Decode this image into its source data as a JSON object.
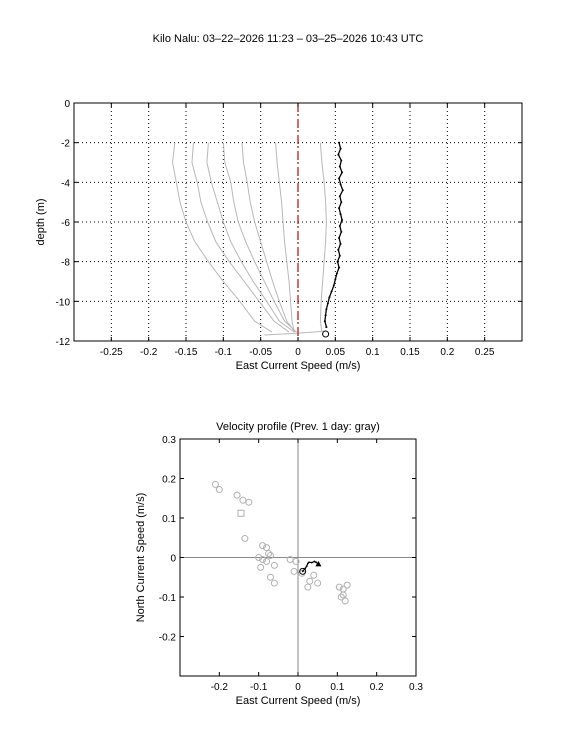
{
  "figure": {
    "title": "Kilo Nalu: 03–22–2026 11:23 – 03–25–2026 10:43 UTC"
  },
  "chart_data": [
    {
      "type": "line",
      "title": "",
      "xlabel": "East Current Speed (m/s)",
      "ylabel": "depth (m)",
      "xlim": [
        -0.3,
        0.3
      ],
      "ylim": [
        -12,
        0
      ],
      "xticks": [
        "-0.25",
        "-0.2",
        "-0.15",
        "-0.1",
        "-0.05",
        "0",
        "0.05",
        "0.1",
        "0.15",
        "0.2",
        "0.25"
      ],
      "yticks": [
        "0",
        "-2",
        "-4",
        "-6",
        "-8",
        "-10",
        "-12"
      ],
      "grid": true,
      "reference_line": {
        "x": 0,
        "color": "#cc0000",
        "style": "dash-dot"
      },
      "colors": {
        "current": "#000000",
        "previous": "#b8b8b8"
      },
      "current_profile": {
        "x": [
          0.055,
          0.057,
          0.054,
          0.058,
          0.056,
          0.059,
          0.055,
          0.057,
          0.06,
          0.056,
          0.058,
          0.055,
          0.057,
          0.059,
          0.056,
          0.058,
          0.055,
          0.057,
          0.054,
          0.056,
          0.053,
          0.055,
          0.052,
          0.05,
          0.048,
          0.045,
          0.042,
          0.04,
          0.038,
          0.037,
          0.036,
          0.038
        ],
        "y": [
          -2.0,
          -2.3,
          -2.6,
          -2.9,
          -3.2,
          -3.5,
          -3.8,
          -4.1,
          -4.4,
          -4.7,
          -5.0,
          -5.3,
          -5.6,
          -5.9,
          -6.2,
          -6.5,
          -6.8,
          -7.1,
          -7.4,
          -7.7,
          -8.0,
          -8.3,
          -8.6,
          -8.9,
          -9.2,
          -9.5,
          -9.8,
          -10.1,
          -10.4,
          -10.7,
          -11.0,
          -11.3
        ]
      },
      "current_bottom_marker": {
        "x": 0.037,
        "y": -11.65
      },
      "previous_profiles": [
        {
          "x": [
            -0.165,
            -0.168,
            -0.163,
            -0.158,
            -0.15,
            -0.138,
            -0.12,
            -0.1,
            -0.078,
            -0.058,
            -0.035
          ],
          "y": [
            -2.0,
            -3.0,
            -4.0,
            -5.0,
            -6.0,
            -7.0,
            -8.0,
            -9.0,
            -10.0,
            -11.0,
            -11.55
          ]
        },
        {
          "x": [
            -0.14,
            -0.142,
            -0.135,
            -0.13,
            -0.121,
            -0.11,
            -0.092,
            -0.072,
            -0.052,
            -0.032,
            -0.012
          ],
          "y": [
            -2.0,
            -3.0,
            -4.0,
            -5.0,
            -6.0,
            -7.0,
            -8.0,
            -9.0,
            -10.0,
            -11.0,
            -11.55
          ]
        },
        {
          "x": [
            -0.12,
            -0.122,
            -0.116,
            -0.108,
            -0.1,
            -0.09,
            -0.076,
            -0.06,
            -0.042,
            -0.025,
            -0.005
          ],
          "y": [
            -2.0,
            -3.0,
            -4.0,
            -5.0,
            -6.0,
            -7.0,
            -8.0,
            -9.0,
            -10.0,
            -11.0,
            -11.55
          ]
        },
        {
          "x": [
            -0.1,
            -0.098,
            -0.09,
            -0.086,
            -0.08,
            -0.07,
            -0.058,
            -0.045,
            -0.032,
            -0.018,
            -0.002
          ],
          "y": [
            -2.0,
            -3.0,
            -4.0,
            -5.0,
            -6.0,
            -7.0,
            -8.0,
            -9.0,
            -10.0,
            -11.0,
            -11.55
          ]
        },
        {
          "x": [
            -0.075,
            -0.073,
            -0.068,
            -0.064,
            -0.058,
            -0.05,
            -0.042,
            -0.034,
            -0.025,
            -0.015,
            -0.004
          ],
          "y": [
            -2.0,
            -3.0,
            -4.0,
            -5.0,
            -6.0,
            -7.0,
            -8.0,
            -9.0,
            -10.0,
            -11.0,
            -11.55
          ]
        },
        {
          "x": [
            -0.03,
            -0.028,
            -0.025,
            -0.022,
            -0.02,
            -0.018,
            -0.015,
            -0.012,
            -0.01,
            -0.008,
            -0.005
          ],
          "y": [
            -2.0,
            -3.0,
            -4.0,
            -5.0,
            -6.0,
            -7.0,
            -8.0,
            -9.0,
            -10.0,
            -11.0,
            -11.55
          ]
        },
        {
          "x": [
            0.03,
            0.032,
            0.035,
            0.037,
            0.038,
            0.037,
            0.035,
            0.033,
            0.031,
            0.03,
            0.032
          ],
          "y": [
            -2.0,
            -3.0,
            -4.0,
            -5.0,
            -6.0,
            -7.0,
            -8.0,
            -9.0,
            -10.0,
            -11.0,
            -11.55
          ]
        },
        {
          "x": [
            -0.045,
            -0.02,
            0.0,
            0.02,
            0.035
          ],
          "y": [
            -11.7,
            -11.65,
            -11.6,
            -11.55,
            -11.5
          ]
        }
      ]
    },
    {
      "type": "scatter",
      "title": "Velocity profile (Prev. 1 day: gray)",
      "xlabel": "East Current Speed (m/s)",
      "ylabel": "North Current Speed (m/s)",
      "xlim": [
        -0.3,
        0.3
      ],
      "ylim": [
        -0.3,
        0.3
      ],
      "xticks": [
        "-0.2",
        "-0.1",
        "0",
        "0.1",
        "0.2",
        "0.3"
      ],
      "yticks": [
        "0.3",
        "0.2",
        "0.1",
        "0",
        "-0.1",
        "-0.2"
      ],
      "grid": false,
      "colors": {
        "current": "#000000",
        "previous": "#b0b0b0",
        "axes_lines": "#888888"
      },
      "previous_points": [
        {
          "x": -0.21,
          "y": 0.185
        },
        {
          "x": -0.2,
          "y": 0.172
        },
        {
          "x": -0.155,
          "y": 0.158
        },
        {
          "x": -0.14,
          "y": 0.145
        },
        {
          "x": -0.125,
          "y": 0.14
        },
        {
          "x": -0.135,
          "y": 0.048
        },
        {
          "x": -0.09,
          "y": 0.03
        },
        {
          "x": -0.08,
          "y": 0.025
        },
        {
          "x": -0.075,
          "y": 0.01
        },
        {
          "x": -0.07,
          "y": 0.005
        },
        {
          "x": -0.1,
          "y": 0.0
        },
        {
          "x": -0.09,
          "y": -0.005
        },
        {
          "x": -0.08,
          "y": -0.01
        },
        {
          "x": -0.095,
          "y": -0.025
        },
        {
          "x": -0.06,
          "y": -0.02
        },
        {
          "x": -0.02,
          "y": -0.005
        },
        {
          "x": -0.005,
          "y": -0.01
        },
        {
          "x": -0.01,
          "y": -0.035
        },
        {
          "x": 0.01,
          "y": -0.04
        },
        {
          "x": 0.04,
          "y": -0.045
        },
        {
          "x": 0.03,
          "y": -0.06
        },
        {
          "x": 0.025,
          "y": -0.075
        },
        {
          "x": 0.05,
          "y": -0.065
        },
        {
          "x": -0.07,
          "y": -0.05
        },
        {
          "x": -0.06,
          "y": -0.065
        },
        {
          "x": 0.105,
          "y": -0.075
        },
        {
          "x": 0.115,
          "y": -0.08
        },
        {
          "x": 0.125,
          "y": -0.07
        },
        {
          "x": 0.11,
          "y": -0.1
        },
        {
          "x": 0.12,
          "y": -0.11
        },
        {
          "x": 0.115,
          "y": -0.095
        }
      ],
      "previous_square": {
        "x": -0.145,
        "y": 0.112
      },
      "current_track": {
        "x": [
          0.012,
          0.018,
          0.022,
          0.025,
          0.028,
          0.035,
          0.042,
          0.046,
          0.05
        ],
        "y": [
          -0.035,
          -0.028,
          -0.022,
          -0.015,
          -0.012,
          -0.013,
          -0.01,
          -0.012,
          -0.015
        ]
      },
      "current_start_marker": {
        "x": 0.012,
        "y": -0.035
      },
      "current_end_marker": {
        "x": 0.052,
        "y": -0.016
      }
    }
  ]
}
